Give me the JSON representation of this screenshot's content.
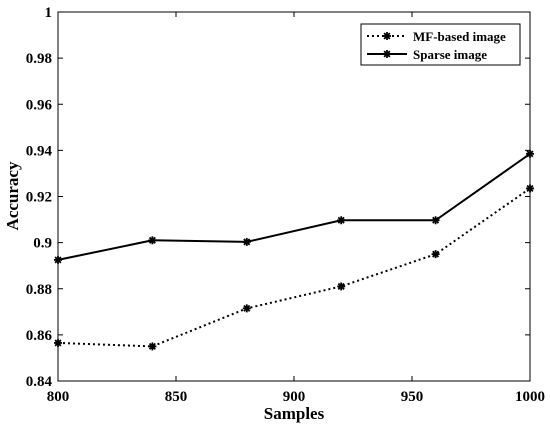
{
  "chart_data": {
    "type": "line",
    "title": "",
    "xlabel": "Samples",
    "ylabel": "Accuracy",
    "xlim": [
      800,
      1000
    ],
    "ylim": [
      0.84,
      1.0
    ],
    "x_ticks": [
      "800",
      "850",
      "900",
      "950",
      "1000"
    ],
    "y_ticks": [
      "0.84",
      "0.86",
      "0.88",
      "0.9",
      "0.92",
      "0.94",
      "0.96",
      "0.98",
      "1"
    ],
    "grid": false,
    "legend_position": "top-right",
    "x": [
      800,
      840,
      880,
      920,
      960,
      1000
    ],
    "series": [
      {
        "name": "MF-based image",
        "style": "dotted",
        "marker": "asterisk",
        "color": "#000000",
        "values": [
          0.8565,
          0.855,
          0.8715,
          0.881,
          0.895,
          0.9235
        ]
      },
      {
        "name": "Sparse image",
        "style": "solid",
        "marker": "asterisk",
        "color": "#000000",
        "values": [
          0.8925,
          0.901,
          0.9003,
          0.9097,
          0.9097,
          0.9385
        ]
      }
    ]
  }
}
